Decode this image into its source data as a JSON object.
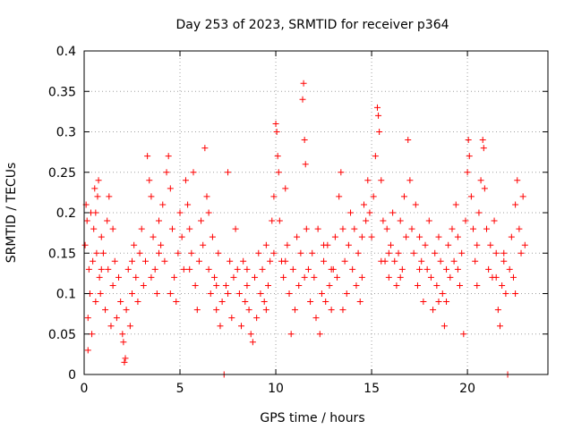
{
  "chart_data": {
    "type": "scatter",
    "title": "Day 253 of 2023, SRMTID for receiver p364",
    "xlabel": "GPS time / hours",
    "ylabel": "SRMTID / TECUs",
    "xlim": [
      0,
      24.2
    ],
    "ylim": [
      0,
      0.4
    ],
    "x_ticks": [
      0,
      5,
      10,
      15,
      20
    ],
    "x_tick_labels": [
      "0",
      "5",
      "10",
      "15",
      "20"
    ],
    "y_ticks": [
      0,
      0.05,
      0.1,
      0.15,
      0.2,
      0.25,
      0.3,
      0.35,
      0.4
    ],
    "y_tick_labels": [
      "0",
      "0.05",
      "0.1",
      "0.15",
      "0.2",
      "0.25",
      "0.3",
      "0.35",
      "0.4"
    ],
    "grid": true,
    "marker": "+",
    "color": "#ff0000",
    "series": [
      {
        "name": "p364",
        "points": [
          [
            0.05,
            0.16
          ],
          [
            0.1,
            0.21
          ],
          [
            0.15,
            0.19
          ],
          [
            0.2,
            0.07
          ],
          [
            0.2,
            0.03
          ],
          [
            0.25,
            0.13
          ],
          [
            0.3,
            0.1
          ],
          [
            0.35,
            0.2
          ],
          [
            0.4,
            0.05
          ],
          [
            0.45,
            0.14
          ],
          [
            0.5,
            0.18
          ],
          [
            0.55,
            0.23
          ],
          [
            0.6,
            0.2
          ],
          [
            0.65,
            0.15
          ],
          [
            0.7,
            0.22
          ],
          [
            0.75,
            0.24
          ],
          [
            0.8,
            0.12
          ],
          [
            0.85,
            0.1
          ],
          [
            0.9,
            0.17
          ],
          [
            1.0,
            0.15
          ],
          [
            1.1,
            0.08
          ],
          [
            1.2,
            0.19
          ],
          [
            1.25,
            0.13
          ],
          [
            1.3,
            0.22
          ],
          [
            1.4,
            0.06
          ],
          [
            1.5,
            0.11
          ],
          [
            1.6,
            0.14
          ],
          [
            1.7,
            0.07
          ],
          [
            1.8,
            0.12
          ],
          [
            1.9,
            0.09
          ],
          [
            2.0,
            0.05
          ],
          [
            2.05,
            0.04
          ],
          [
            2.1,
            0.015
          ],
          [
            2.15,
            0.02
          ],
          [
            2.2,
            0.08
          ],
          [
            2.3,
            0.13
          ],
          [
            2.4,
            0.06
          ],
          [
            2.5,
            0.1
          ],
          [
            2.6,
            0.16
          ],
          [
            2.7,
            0.12
          ],
          [
            2.8,
            0.09
          ],
          [
            2.9,
            0.15
          ],
          [
            3.0,
            0.18
          ],
          [
            3.1,
            0.11
          ],
          [
            3.2,
            0.14
          ],
          [
            3.3,
            0.27
          ],
          [
            3.4,
            0.24
          ],
          [
            3.5,
            0.22
          ],
          [
            3.6,
            0.17
          ],
          [
            3.7,
            0.13
          ],
          [
            3.8,
            0.1
          ],
          [
            3.9,
            0.19
          ],
          [
            4.0,
            0.16
          ],
          [
            4.1,
            0.21
          ],
          [
            4.2,
            0.14
          ],
          [
            4.3,
            0.25
          ],
          [
            4.4,
            0.27
          ],
          [
            4.5,
            0.23
          ],
          [
            4.6,
            0.18
          ],
          [
            4.7,
            0.12
          ],
          [
            4.8,
            0.09
          ],
          [
            4.9,
            0.15
          ],
          [
            5.0,
            0.2
          ],
          [
            5.1,
            0.17
          ],
          [
            5.2,
            0.13
          ],
          [
            5.3,
            0.24
          ],
          [
            5.4,
            0.21
          ],
          [
            5.5,
            0.18
          ],
          [
            5.6,
            0.15
          ],
          [
            5.7,
            0.25
          ],
          [
            5.8,
            0.11
          ],
          [
            5.9,
            0.08
          ],
          [
            6.0,
            0.14
          ],
          [
            6.1,
            0.19
          ],
          [
            6.2,
            0.16
          ],
          [
            6.3,
            0.28
          ],
          [
            6.4,
            0.22
          ],
          [
            6.5,
            0.13
          ],
          [
            6.6,
            0.1
          ],
          [
            6.7,
            0.17
          ],
          [
            6.8,
            0.12
          ],
          [
            6.9,
            0.08
          ],
          [
            7.0,
            0.15
          ],
          [
            7.1,
            0.06
          ],
          [
            7.2,
            0.09
          ],
          [
            7.3,
            0.0
          ],
          [
            7.4,
            0.11
          ],
          [
            7.5,
            0.25
          ],
          [
            7.6,
            0.14
          ],
          [
            7.7,
            0.07
          ],
          [
            7.8,
            0.12
          ],
          [
            7.9,
            0.18
          ],
          [
            8.0,
            0.13
          ],
          [
            8.1,
            0.1
          ],
          [
            8.2,
            0.06
          ],
          [
            8.3,
            0.14
          ],
          [
            8.4,
            0.09
          ],
          [
            8.5,
            0.11
          ],
          [
            8.6,
            0.08
          ],
          [
            8.7,
            0.05
          ],
          [
            8.8,
            0.04
          ],
          [
            8.9,
            0.12
          ],
          [
            9.0,
            0.07
          ],
          [
            9.1,
            0.15
          ],
          [
            9.2,
            0.1
          ],
          [
            9.3,
            0.13
          ],
          [
            9.4,
            0.09
          ],
          [
            9.5,
            0.16
          ],
          [
            9.6,
            0.11
          ],
          [
            9.7,
            0.14
          ],
          [
            9.8,
            0.19
          ],
          [
            9.9,
            0.22
          ],
          [
            10.0,
            0.31
          ],
          [
            10.05,
            0.3
          ],
          [
            10.1,
            0.27
          ],
          [
            10.15,
            0.25
          ],
          [
            10.2,
            0.19
          ],
          [
            10.3,
            0.14
          ],
          [
            10.4,
            0.12
          ],
          [
            10.5,
            0.23
          ],
          [
            10.6,
            0.16
          ],
          [
            10.7,
            0.1
          ],
          [
            10.8,
            0.05
          ],
          [
            10.9,
            0.13
          ],
          [
            11.0,
            0.08
          ],
          [
            11.1,
            0.17
          ],
          [
            11.2,
            0.11
          ],
          [
            11.3,
            0.15
          ],
          [
            11.4,
            0.34
          ],
          [
            11.45,
            0.36
          ],
          [
            11.5,
            0.29
          ],
          [
            11.55,
            0.26
          ],
          [
            11.6,
            0.18
          ],
          [
            11.7,
            0.13
          ],
          [
            11.8,
            0.09
          ],
          [
            11.9,
            0.15
          ],
          [
            12.0,
            0.12
          ],
          [
            12.1,
            0.07
          ],
          [
            12.2,
            0.18
          ],
          [
            12.3,
            0.05
          ],
          [
            12.4,
            0.1
          ],
          [
            12.5,
            0.14
          ],
          [
            12.6,
            0.09
          ],
          [
            12.7,
            0.16
          ],
          [
            12.8,
            0.11
          ],
          [
            12.9,
            0.08
          ],
          [
            13.0,
            0.13
          ],
          [
            13.1,
            0.17
          ],
          [
            13.2,
            0.12
          ],
          [
            13.3,
            0.22
          ],
          [
            13.4,
            0.25
          ],
          [
            13.5,
            0.18
          ],
          [
            13.6,
            0.14
          ],
          [
            13.7,
            0.1
          ],
          [
            13.8,
            0.16
          ],
          [
            13.9,
            0.2
          ],
          [
            14.0,
            0.13
          ],
          [
            14.1,
            0.18
          ],
          [
            14.2,
            0.11
          ],
          [
            14.3,
            0.15
          ],
          [
            14.4,
            0.09
          ],
          [
            14.5,
            0.12
          ],
          [
            14.6,
            0.21
          ],
          [
            14.7,
            0.19
          ],
          [
            14.8,
            0.24
          ],
          [
            14.9,
            0.2
          ],
          [
            15.0,
            0.17
          ],
          [
            15.1,
            0.22
          ],
          [
            15.2,
            0.27
          ],
          [
            15.3,
            0.33
          ],
          [
            15.35,
            0.32
          ],
          [
            15.4,
            0.3
          ],
          [
            15.5,
            0.24
          ],
          [
            15.6,
            0.19
          ],
          [
            15.7,
            0.14
          ],
          [
            15.8,
            0.18
          ],
          [
            15.9,
            0.12
          ],
          [
            16.0,
            0.16
          ],
          [
            16.1,
            0.2
          ],
          [
            16.2,
            0.14
          ],
          [
            16.3,
            0.11
          ],
          [
            16.4,
            0.15
          ],
          [
            16.5,
            0.19
          ],
          [
            16.6,
            0.13
          ],
          [
            16.7,
            0.22
          ],
          [
            16.8,
            0.17
          ],
          [
            16.9,
            0.29
          ],
          [
            17.0,
            0.24
          ],
          [
            17.1,
            0.18
          ],
          [
            17.2,
            0.15
          ],
          [
            17.3,
            0.21
          ],
          [
            17.4,
            0.11
          ],
          [
            17.5,
            0.17
          ],
          [
            17.6,
            0.14
          ],
          [
            17.7,
            0.09
          ],
          [
            17.8,
            0.16
          ],
          [
            17.9,
            0.13
          ],
          [
            18.0,
            0.19
          ],
          [
            18.1,
            0.12
          ],
          [
            18.2,
            0.08
          ],
          [
            18.3,
            0.15
          ],
          [
            18.4,
            0.11
          ],
          [
            18.5,
            0.17
          ],
          [
            18.6,
            0.14
          ],
          [
            18.7,
            0.1
          ],
          [
            18.8,
            0.06
          ],
          [
            18.9,
            0.13
          ],
          [
            19.0,
            0.16
          ],
          [
            19.1,
            0.12
          ],
          [
            19.2,
            0.18
          ],
          [
            19.3,
            0.14
          ],
          [
            19.4,
            0.21
          ],
          [
            19.5,
            0.17
          ],
          [
            19.6,
            0.11
          ],
          [
            19.7,
            0.15
          ],
          [
            19.8,
            0.05
          ],
          [
            19.9,
            0.19
          ],
          [
            20.0,
            0.25
          ],
          [
            20.05,
            0.29
          ],
          [
            20.1,
            0.27
          ],
          [
            20.2,
            0.22
          ],
          [
            20.3,
            0.18
          ],
          [
            20.4,
            0.14
          ],
          [
            20.5,
            0.11
          ],
          [
            20.6,
            0.2
          ],
          [
            20.7,
            0.24
          ],
          [
            20.8,
            0.29
          ],
          [
            20.85,
            0.28
          ],
          [
            20.9,
            0.23
          ],
          [
            21.0,
            0.18
          ],
          [
            21.1,
            0.13
          ],
          [
            21.2,
            0.16
          ],
          [
            21.3,
            0.12
          ],
          [
            21.4,
            0.19
          ],
          [
            21.5,
            0.15
          ],
          [
            21.6,
            0.08
          ],
          [
            21.7,
            0.06
          ],
          [
            21.8,
            0.11
          ],
          [
            21.9,
            0.14
          ],
          [
            22.0,
            0.1
          ],
          [
            22.1,
            0.0
          ],
          [
            22.2,
            0.13
          ],
          [
            22.3,
            0.17
          ],
          [
            22.4,
            0.12
          ],
          [
            22.5,
            0.21
          ],
          [
            22.6,
            0.24
          ],
          [
            22.7,
            0.18
          ],
          [
            22.8,
            0.15
          ],
          [
            22.9,
            0.22
          ],
          [
            23.0,
            0.16
          ],
          [
            0.6,
            0.09
          ],
          [
            1.5,
            0.18
          ],
          [
            2.5,
            0.14
          ],
          [
            3.5,
            0.12
          ],
          [
            4.5,
            0.1
          ],
          [
            5.5,
            0.13
          ],
          [
            6.5,
            0.2
          ],
          [
            7.5,
            0.1
          ],
          [
            8.5,
            0.13
          ],
          [
            9.5,
            0.08
          ],
          [
            10.5,
            0.14
          ],
          [
            11.5,
            0.12
          ],
          [
            12.5,
            0.16
          ],
          [
            13.5,
            0.08
          ],
          [
            14.5,
            0.17
          ],
          [
            15.5,
            0.14
          ],
          [
            16.5,
            0.12
          ],
          [
            17.5,
            0.13
          ],
          [
            18.5,
            0.09
          ],
          [
            19.5,
            0.13
          ],
          [
            20.5,
            0.16
          ],
          [
            21.5,
            0.12
          ],
          [
            22.5,
            0.1
          ],
          [
            0.9,
            0.13
          ],
          [
            3.9,
            0.15
          ],
          [
            6.9,
            0.11
          ],
          [
            9.9,
            0.15
          ],
          [
            12.9,
            0.13
          ],
          [
            15.9,
            0.15
          ],
          [
            18.9,
            0.09
          ],
          [
            21.9,
            0.15
          ]
        ]
      }
    ]
  }
}
